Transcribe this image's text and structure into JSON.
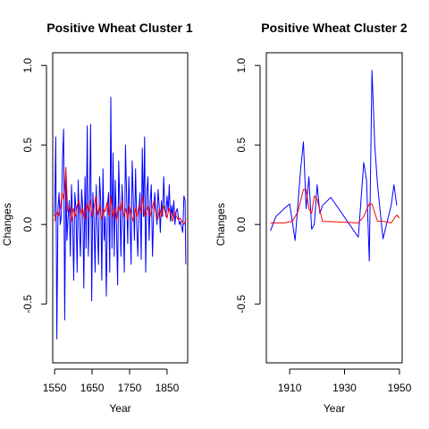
{
  "chart_data": [
    {
      "type": "line",
      "title": "Positive Wheat Cluster 1",
      "xlabel": "Year",
      "ylabel": "Changes",
      "xlim": [
        1545,
        1905
      ],
      "ylim": [
        -0.87,
        1.08
      ],
      "xticks": [
        1550,
        1650,
        1750,
        1850
      ],
      "yticks": [
        -0.5,
        0.0,
        0.5,
        1.0
      ],
      "ytick_labels": [
        "-0.5",
        "0.0",
        "0.5",
        "1.0"
      ],
      "series": [
        {
          "color": "#0000ff",
          "x": [
            1550,
            1553,
            1556,
            1559,
            1562,
            1565,
            1568,
            1571,
            1574,
            1577,
            1580,
            1583,
            1586,
            1589,
            1592,
            1595,
            1598,
            1601,
            1604,
            1607,
            1610,
            1613,
            1616,
            1619,
            1622,
            1625,
            1628,
            1631,
            1634,
            1637,
            1640,
            1643,
            1646,
            1649,
            1652,
            1655,
            1658,
            1661,
            1664,
            1667,
            1670,
            1673,
            1676,
            1679,
            1682,
            1685,
            1688,
            1691,
            1694,
            1697,
            1700,
            1703,
            1706,
            1709,
            1712,
            1715,
            1718,
            1721,
            1724,
            1727,
            1730,
            1733,
            1736,
            1739,
            1742,
            1745,
            1748,
            1751,
            1754,
            1757,
            1760,
            1763,
            1766,
            1769,
            1772,
            1775,
            1778,
            1781,
            1784,
            1787,
            1790,
            1793,
            1796,
            1799,
            1802,
            1805,
            1808,
            1811,
            1814,
            1817,
            1820,
            1823,
            1826,
            1829,
            1832,
            1835,
            1838,
            1841,
            1844,
            1847,
            1850,
            1853,
            1856,
            1859,
            1862,
            1865,
            1868,
            1871,
            1874,
            1877,
            1880,
            1883,
            1886,
            1889,
            1892,
            1895,
            1898,
            1900
          ],
          "values": [
            0.05,
            0.55,
            -0.72,
            0.1,
            0.2,
            0.0,
            0.05,
            0.4,
            0.6,
            -0.6,
            0.3,
            -0.1,
            0.05,
            0.15,
            -0.2,
            0.25,
            0.05,
            -0.35,
            0.2,
            0.1,
            -0.3,
            0.28,
            0.0,
            -0.2,
            0.22,
            0.1,
            -0.4,
            0.3,
            -0.15,
            0.62,
            -0.2,
            0.1,
            0.63,
            -0.48,
            0.2,
            0.05,
            -0.3,
            0.25,
            0.0,
            -0.25,
            0.3,
            0.15,
            -0.35,
            0.35,
            -0.1,
            0.05,
            -0.45,
            0.12,
            0.2,
            -0.3,
            0.8,
            -0.15,
            0.45,
            -0.2,
            0.28,
            0.0,
            -0.38,
            0.4,
            0.12,
            -0.2,
            0.25,
            0.05,
            -0.3,
            0.5,
            0.2,
            -0.12,
            0.3,
            0.05,
            -0.25,
            0.4,
            0.15,
            -0.1,
            0.35,
            0.0,
            -0.2,
            0.1,
            0.2,
            -0.22,
            0.48,
            0.05,
            0.55,
            -0.3,
            0.2,
            0.3,
            -0.1,
            0.15,
            0.25,
            -0.2,
            0.05,
            0.2,
            0.1,
            0.0,
            0.22,
            0.12,
            -0.05,
            0.15,
            0.05,
            0.3,
            0.1,
            0.05,
            0.18,
            0.08,
            0.25,
            0.02,
            0.12,
            0.05,
            0.15,
            0.0,
            0.08,
            0.1,
            0.05,
            0.0,
            0.02,
            -0.02,
            -0.05,
            0.18,
            0.15,
            -0.25
          ]
        },
        {
          "color": "#ff0000",
          "x": [
            1550,
            1555,
            1560,
            1565,
            1570,
            1575,
            1580,
            1585,
            1590,
            1595,
            1600,
            1605,
            1610,
            1615,
            1620,
            1625,
            1630,
            1635,
            1640,
            1645,
            1650,
            1655,
            1660,
            1665,
            1670,
            1675,
            1680,
            1685,
            1690,
            1695,
            1700,
            1705,
            1710,
            1715,
            1720,
            1725,
            1730,
            1735,
            1740,
            1745,
            1750,
            1755,
            1760,
            1765,
            1770,
            1775,
            1780,
            1785,
            1790,
            1795,
            1800,
            1805,
            1810,
            1815,
            1820,
            1825,
            1830,
            1835,
            1840,
            1845,
            1850,
            1855,
            1860,
            1865,
            1870,
            1875,
            1880,
            1885,
            1890,
            1895,
            1900
          ],
          "values": [
            0.02,
            0.08,
            0.05,
            0.1,
            0.2,
            0.15,
            0.36,
            0.08,
            0.12,
            0.02,
            0.1,
            0.05,
            0.12,
            0.15,
            0.06,
            0.1,
            0.03,
            0.13,
            0.08,
            0.15,
            0.05,
            0.1,
            0.18,
            0.06,
            0.12,
            0.03,
            0.1,
            0.08,
            0.14,
            0.05,
            0.18,
            0.05,
            0.1,
            0.02,
            0.12,
            0.08,
            0.15,
            0.05,
            0.1,
            0.03,
            0.12,
            0.06,
            0.02,
            0.1,
            0.05,
            0.12,
            0.07,
            0.18,
            0.05,
            0.08,
            0.12,
            0.05,
            0.1,
            0.15,
            0.08,
            0.03,
            0.1,
            0.05,
            0.12,
            0.08,
            0.04,
            0.1,
            0.06,
            0.02,
            0.08,
            0.05,
            0.03,
            0.04,
            0.02,
            0.0,
            0.03
          ]
        }
      ]
    },
    {
      "type": "line",
      "title": "Positive Wheat Cluster 2",
      "xlabel": "Year",
      "ylabel": "Changes",
      "xlim": [
        1901.5,
        1951
      ],
      "ylim": [
        -0.87,
        1.08
      ],
      "xticks": [
        1910,
        1930,
        1950
      ],
      "yticks": [
        -0.5,
        0.0,
        0.5,
        1.0
      ],
      "ytick_labels": [
        "-0.5",
        "0.0",
        "0.5",
        "1.0"
      ],
      "series": [
        {
          "color": "#0000ff",
          "x": [
            1903,
            1905,
            1908,
            1910,
            1912,
            1914,
            1915,
            1916,
            1917,
            1918,
            1919,
            1920,
            1921,
            1922,
            1925,
            1935,
            1937,
            1938,
            1939,
            1940,
            1941,
            1942,
            1944,
            1947,
            1948,
            1949
          ],
          "values": [
            -0.04,
            0.05,
            0.1,
            0.13,
            -0.1,
            0.35,
            0.52,
            0.1,
            0.3,
            -0.03,
            0.0,
            0.25,
            0.07,
            0.12,
            0.17,
            -0.08,
            0.39,
            0.28,
            -0.23,
            0.97,
            0.5,
            0.25,
            -0.09,
            0.12,
            0.25,
            0.12
          ]
        },
        {
          "color": "#ff0000",
          "x": [
            1903,
            1908,
            1911,
            1913,
            1915,
            1916,
            1917,
            1918,
            1919,
            1920,
            1922,
            1935,
            1937,
            1939,
            1940,
            1942,
            1944,
            1947,
            1949,
            1950
          ],
          "values": [
            0.01,
            0.01,
            0.02,
            0.08,
            0.22,
            0.22,
            0.1,
            0.07,
            0.18,
            0.16,
            0.02,
            0.01,
            0.05,
            0.13,
            0.13,
            0.02,
            0.02,
            0.01,
            0.06,
            0.04
          ]
        }
      ]
    }
  ]
}
